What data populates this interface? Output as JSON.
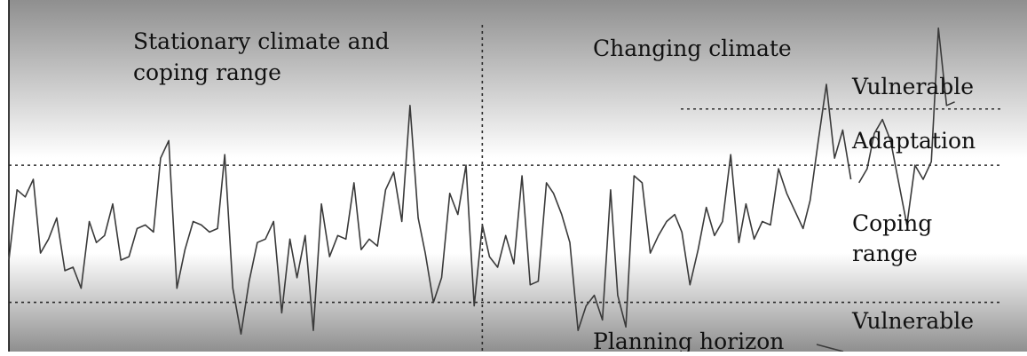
{
  "colors": {
    "band_dark": "#8f8f8f",
    "band_light": "#ffffff",
    "line": "#3a3a3a",
    "dotted": "#2a2a2a",
    "text": "#111111"
  },
  "labels": {
    "stationary": [
      "Stationary climate and",
      "coping range"
    ],
    "changing": "Changing climate",
    "vulnerable_top": "Vulnerable",
    "adaptation": "Adaptation",
    "coping": [
      "Coping",
      "range"
    ],
    "vulnerable_bottom": "Vulnerable",
    "planning_horizon": "Planning horizon"
  },
  "chart_data": {
    "type": "line",
    "title": "",
    "xlabel": "",
    "ylabel": "",
    "xlim": [
      0,
      1
    ],
    "ylim": [
      0,
      1
    ],
    "grid": false,
    "thresholds": {
      "upper_coping": 0.53,
      "lower_coping": 0.14,
      "adaptation_upper": 0.69
    },
    "divider_x": 0.465,
    "adaptation_start_x": 0.66,
    "series": [
      {
        "x": [
          0.0,
          0.008,
          0.016,
          0.024,
          0.031,
          0.039,
          0.047,
          0.055,
          0.063,
          0.071,
          0.079,
          0.086,
          0.094,
          0.102,
          0.11,
          0.118,
          0.126,
          0.134,
          0.142,
          0.149,
          0.157,
          0.165,
          0.173,
          0.181,
          0.189,
          0.197,
          0.205,
          0.212,
          0.22,
          0.228,
          0.236,
          0.244,
          0.252,
          0.26,
          0.268,
          0.276,
          0.283,
          0.291,
          0.299,
          0.307,
          0.315,
          0.323,
          0.331,
          0.339,
          0.346,
          0.354,
          0.362,
          0.37,
          0.378,
          0.386,
          0.394,
          0.402,
          0.409,
          0.417,
          0.425,
          0.433,
          0.441,
          0.449,
          0.457,
          0.465,
          0.472,
          0.48,
          0.488,
          0.496,
          0.504,
          0.512,
          0.52,
          0.528,
          0.535,
          0.543,
          0.551,
          0.559,
          0.567,
          0.575,
          0.583,
          0.591,
          0.598,
          0.606,
          0.614,
          0.622,
          0.63,
          0.638,
          0.646,
          0.654,
          0.661,
          0.669,
          0.677,
          0.685,
          0.693,
          0.701,
          0.709,
          0.717,
          0.724,
          0.732,
          0.74,
          0.748,
          0.756,
          0.764,
          0.772,
          0.78,
          0.787,
          0.795,
          0.803,
          0.811,
          0.819,
          0.827
        ],
        "y": [
          0.26,
          0.46,
          0.44,
          0.49,
          0.28,
          0.32,
          0.38,
          0.23,
          0.24,
          0.18,
          0.37,
          0.31,
          0.33,
          0.42,
          0.26,
          0.27,
          0.35,
          0.36,
          0.34,
          0.55,
          0.6,
          0.18,
          0.29,
          0.37,
          0.36,
          0.34,
          0.35,
          0.56,
          0.18,
          0.05,
          0.2,
          0.31,
          0.32,
          0.37,
          0.11,
          0.32,
          0.21,
          0.33,
          0.06,
          0.42,
          0.27,
          0.33,
          0.32,
          0.48,
          0.29,
          0.32,
          0.3,
          0.46,
          0.51,
          0.37,
          0.7,
          0.38,
          0.28,
          0.14,
          0.21,
          0.45,
          0.39,
          0.53,
          0.13,
          0.36,
          0.27,
          0.24,
          0.33,
          0.25,
          0.5,
          0.19,
          0.2,
          0.48,
          0.45,
          0.39,
          0.31,
          0.06,
          0.13,
          0.16,
          0.09,
          0.46,
          0.16,
          0.07,
          0.5,
          0.48,
          0.28,
          0.33,
          0.37,
          0.39,
          0.34,
          0.19,
          0.29,
          0.41,
          0.33,
          0.37,
          0.56,
          0.31,
          0.42,
          0.32,
          0.37,
          0.36,
          0.52,
          0.45,
          0.4,
          0.35,
          0.43,
          0.6,
          0.76,
          0.55,
          0.63,
          0.49
        ]
      },
      {
        "x": [
          0.835,
          0.843,
          0.85,
          0.858,
          0.866,
          0.874,
          0.882,
          0.89,
          0.898,
          0.906,
          0.913,
          0.921,
          0.929
        ],
        "y": [
          0.48,
          0.52,
          0.62,
          0.66,
          0.6,
          0.48,
          0.36,
          0.53,
          0.49,
          0.54,
          0.92,
          0.7,
          0.71
        ]
      }
    ]
  }
}
